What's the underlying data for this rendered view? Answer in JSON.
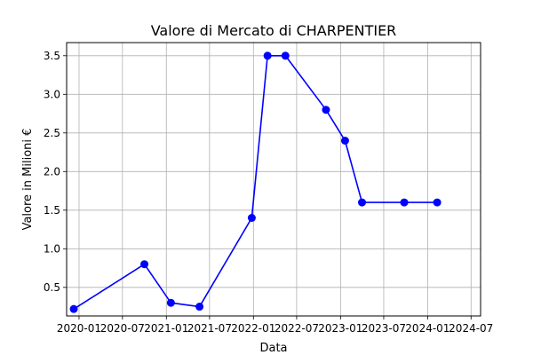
{
  "chart_data": {
    "type": "line",
    "title": "Valore di Mercato di CHARPENTIER",
    "xlabel": "Data",
    "ylabel": "Valore in Milioni €",
    "x_axis_type": "date",
    "xlim": [
      "2019-11-10",
      "2024-08-10"
    ],
    "ylim": [
      0.13,
      3.67
    ],
    "x_ticks": [
      "2020-01-01",
      "2020-07-01",
      "2021-01-01",
      "2021-07-01",
      "2022-01-01",
      "2022-07-01",
      "2023-01-01",
      "2023-07-01",
      "2024-01-01",
      "2024-07-01"
    ],
    "x_tick_labels": [
      "2020-01",
      "2020-07",
      "2021-01",
      "2021-07",
      "2022-01",
      "2022-07",
      "2023-01",
      "2023-07",
      "2024-01",
      "2024-07"
    ],
    "y_ticks": [
      0.5,
      1.0,
      1.5,
      2.0,
      2.5,
      3.0,
      3.5
    ],
    "y_tick_labels": [
      "0.5",
      "1.0",
      "1.5",
      "2.0",
      "2.5",
      "3.0",
      "3.5"
    ],
    "grid": true,
    "series": [
      {
        "color": "#0000ff",
        "marker": "circle",
        "points": [
          {
            "x": "2019-12-10",
            "y": 0.22
          },
          {
            "x": "2020-10-01",
            "y": 0.8
          },
          {
            "x": "2021-01-20",
            "y": 0.3
          },
          {
            "x": "2021-05-20",
            "y": 0.25
          },
          {
            "x": "2021-12-25",
            "y": 1.4
          },
          {
            "x": "2022-03-01",
            "y": 3.5
          },
          {
            "x": "2022-05-15",
            "y": 3.5
          },
          {
            "x": "2022-11-01",
            "y": 2.8
          },
          {
            "x": "2023-01-20",
            "y": 2.4
          },
          {
            "x": "2023-04-01",
            "y": 1.6
          },
          {
            "x": "2023-09-25",
            "y": 1.6
          },
          {
            "x": "2024-02-10",
            "y": 1.6
          }
        ]
      }
    ]
  }
}
